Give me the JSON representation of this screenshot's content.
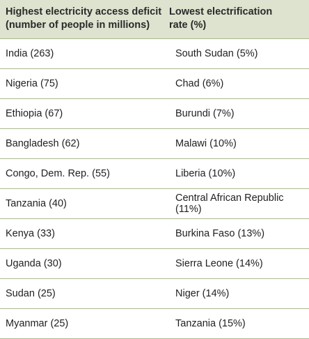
{
  "header": {
    "col1_line1": "Highest electricity access deficit",
    "col1_line2": "(number of people in millions)",
    "col2_line1": "Lowest electrification",
    "col2_line2": "rate (%)"
  },
  "rows": [
    {
      "deficit": "India (263)",
      "rate": "South Sudan (5%)"
    },
    {
      "deficit": "Nigeria (75)",
      "rate": "Chad (6%)"
    },
    {
      "deficit": "Ethiopia (67)",
      "rate": "Burundi (7%)"
    },
    {
      "deficit": "Bangladesh (62)",
      "rate": "Malawi (10%)"
    },
    {
      "deficit": "Congo, Dem. Rep. (55)",
      "rate": "Liberia (10%)"
    },
    {
      "deficit": "Tanzania (40)",
      "rate": "Central African Republic (11%)"
    },
    {
      "deficit": "Kenya (33)",
      "rate": "Burkina Faso (13%)"
    },
    {
      "deficit": "Uganda (30)",
      "rate": "Sierra Leone (14%)"
    },
    {
      "deficit": "Sudan (25)",
      "rate": "Niger (14%)"
    },
    {
      "deficit": "Myanmar (25)",
      "rate": "Tanzania (15%)"
    }
  ],
  "colors": {
    "header_background": "#dde3cf",
    "rule": "#a9b98f"
  }
}
